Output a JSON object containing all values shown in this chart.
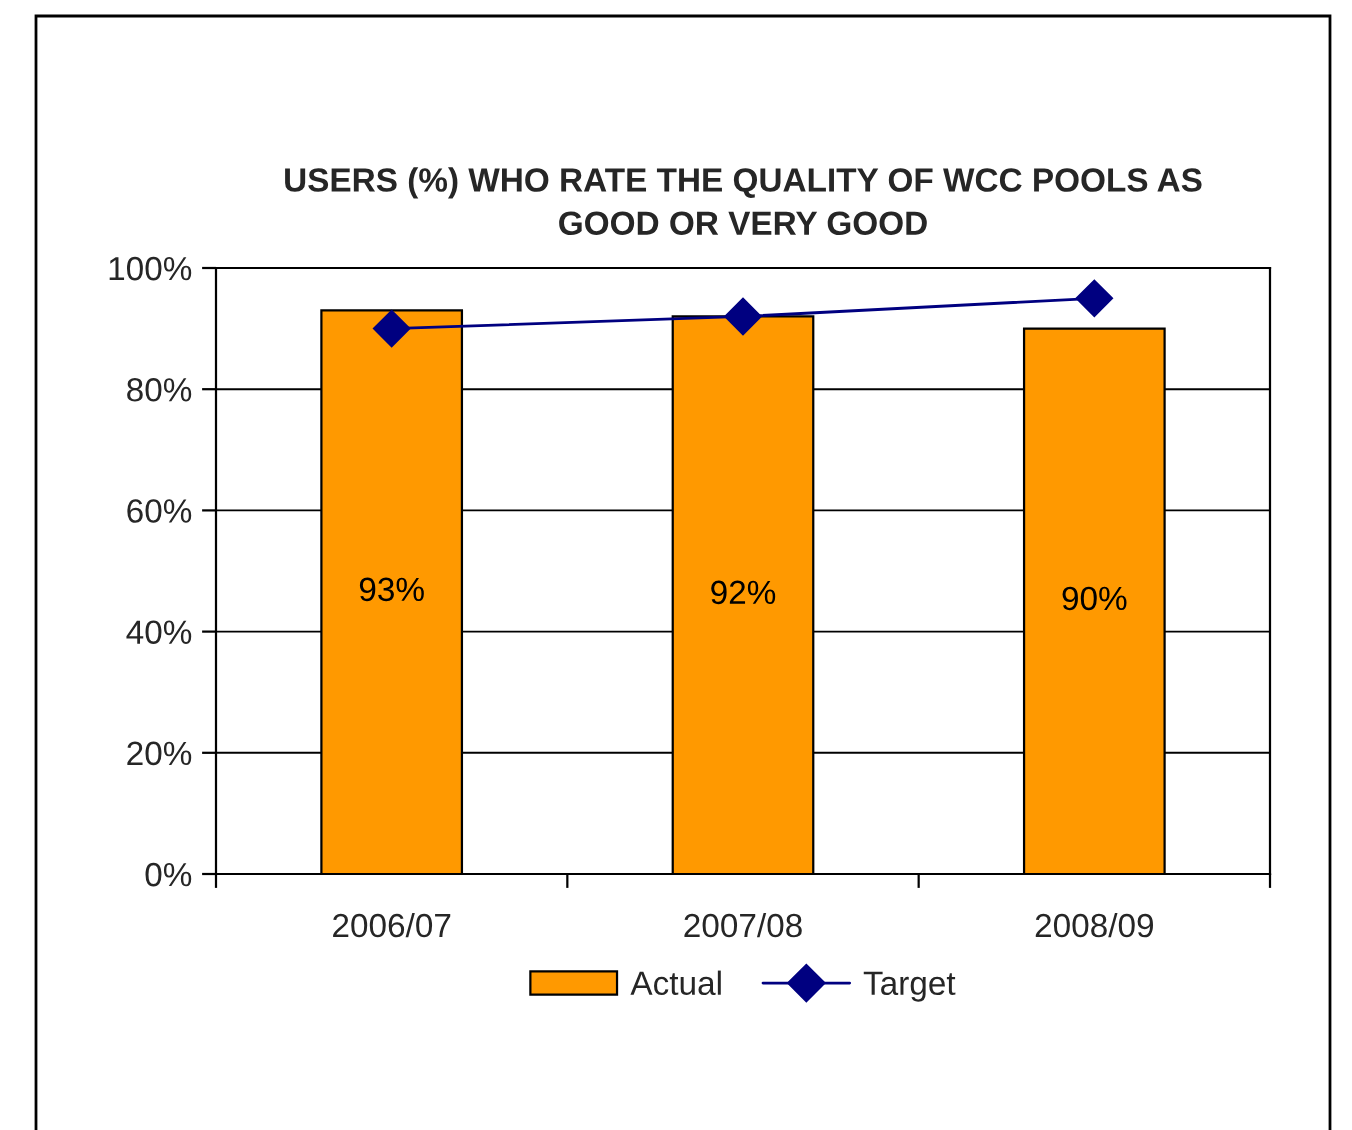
{
  "chart_data": {
    "type": "bar",
    "title": "USERS (%) WHO RATE THE QUALITY OF WCC POOLS AS GOOD OR VERY GOOD",
    "categories": [
      "2006/07",
      "2007/08",
      "2008/09"
    ],
    "series": [
      {
        "name": "Actual",
        "color": "#ff9900",
        "values": [
          93,
          92,
          90
        ],
        "value_labels": [
          "93%",
          "92%",
          "90%"
        ]
      },
      {
        "name": "Target",
        "type": "line",
        "color": "#000080",
        "values": [
          90,
          92,
          95
        ],
        "marker": "diamond",
        "line_style": "solid"
      }
    ],
    "ylim": [
      0,
      100
    ],
    "yticks": [
      {
        "value": 0,
        "label": "0%"
      },
      {
        "value": 20,
        "label": "20%"
      },
      {
        "value": 40,
        "label": "40%"
      },
      {
        "value": 60,
        "label": "60%"
      },
      {
        "value": 80,
        "label": "80%"
      },
      {
        "value": 100,
        "label": "100%"
      }
    ],
    "grid": "y",
    "legend": "bottom"
  }
}
